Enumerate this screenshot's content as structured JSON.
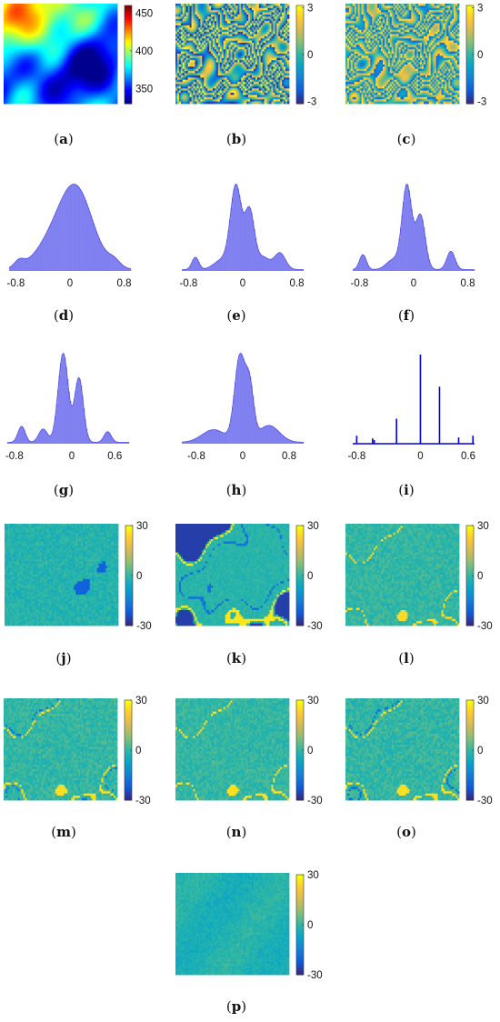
{
  "palettes": {
    "jet": [
      "#00008f",
      "#0000ff",
      "#0080ff",
      "#00ffff",
      "#80ff80",
      "#ffff00",
      "#ff8000",
      "#ff0000",
      "#800000"
    ],
    "parula": [
      "#352a87",
      "#0f5cdd",
      "#1481d6",
      "#06a4ca",
      "#2eb7a4",
      "#87bf77",
      "#d1bb59",
      "#fec832",
      "#f9fb0e"
    ]
  },
  "hist_color": "#6f6fee",
  "stem_color": "#0000dd",
  "panels": [
    {
      "id": "a",
      "label": "a",
      "kind": "map",
      "cmap": "jet",
      "pattern": "elev",
      "colorbar": {
        "min": 330,
        "max": 460,
        "ticks": [
          {
            "v": 450,
            "t": "450"
          },
          {
            "v": 400,
            "t": "400"
          },
          {
            "v": 350,
            "t": "350"
          }
        ]
      }
    },
    {
      "id": "b",
      "label": "b",
      "kind": "map",
      "cmap": "parula",
      "pattern": "wrap1",
      "colorbar": {
        "min": -3.14,
        "max": 3.14,
        "ticks": [
          {
            "v": 3,
            "t": "3"
          },
          {
            "v": 0,
            "t": "0"
          },
          {
            "v": -3,
            "t": "-3"
          }
        ]
      }
    },
    {
      "id": "c",
      "label": "c",
      "kind": "map",
      "cmap": "parula",
      "pattern": "wrap2",
      "colorbar": {
        "min": -3.14,
        "max": 3.14,
        "ticks": [
          {
            "v": 3,
            "t": "3"
          },
          {
            "v": 0,
            "t": "0"
          },
          {
            "v": -3,
            "t": "-3"
          }
        ]
      }
    },
    {
      "id": "d",
      "label": "d",
      "kind": "hist",
      "xlim": [
        -0.9,
        0.9
      ],
      "xticks": [
        {
          "v": -0.8,
          "t": "-0.8"
        },
        {
          "v": 0,
          "t": "0"
        },
        {
          "v": 0.8,
          "t": "0.8"
        }
      ],
      "peaks": [
        [
          -0.05,
          0.32,
          0.95
        ],
        [
          0.12,
          0.22,
          0.75
        ],
        [
          -0.75,
          0.07,
          0.12
        ],
        [
          0.65,
          0.09,
          0.12
        ]
      ]
    },
    {
      "id": "e",
      "label": "e",
      "kind": "hist",
      "xlim": [
        -0.9,
        0.9
      ],
      "xticks": [
        {
          "v": -0.8,
          "t": "-0.8"
        },
        {
          "v": 0,
          "t": "0"
        },
        {
          "v": 0.8,
          "t": "0.8"
        }
      ],
      "peaks": [
        [
          -0.1,
          0.08,
          1.0
        ],
        [
          0.1,
          0.07,
          0.7
        ],
        [
          -0.7,
          0.05,
          0.15
        ],
        [
          0.55,
          0.08,
          0.2
        ],
        [
          -0.3,
          0.12,
          0.12
        ],
        [
          0.3,
          0.1,
          0.15
        ]
      ]
    },
    {
      "id": "f",
      "label": "f",
      "kind": "hist",
      "xlim": [
        -0.9,
        0.9
      ],
      "xticks": [
        {
          "v": -0.8,
          "t": "-0.8"
        },
        {
          "v": 0,
          "t": "0"
        },
        {
          "v": 0.8,
          "t": "0.8"
        }
      ],
      "peaks": [
        [
          -0.1,
          0.07,
          1.0
        ],
        [
          0.1,
          0.07,
          0.65
        ],
        [
          -0.75,
          0.05,
          0.18
        ],
        [
          0.55,
          0.06,
          0.22
        ],
        [
          -0.3,
          0.1,
          0.12
        ]
      ]
    },
    {
      "id": "g",
      "label": "g",
      "kind": "hist",
      "xlim": [
        -0.9,
        0.8
      ],
      "xticks": [
        {
          "v": -0.8,
          "t": "-0.8"
        },
        {
          "v": 0,
          "t": "0"
        },
        {
          "v": 0.6,
          "t": "0.6"
        }
      ],
      "peaks": [
        [
          -0.12,
          0.07,
          1.0
        ],
        [
          0.1,
          0.06,
          0.72
        ],
        [
          -0.7,
          0.05,
          0.18
        ],
        [
          0.5,
          0.05,
          0.12
        ],
        [
          -0.4,
          0.06,
          0.15
        ]
      ]
    },
    {
      "id": "h",
      "label": "h",
      "kind": "hist",
      "xlim": [
        -1.05,
        1.05
      ],
      "xticks": [
        {
          "v": -0.8,
          "t": "-0.8"
        },
        {
          "v": 0,
          "t": "0"
        },
        {
          "v": 0.8,
          "t": "0.8"
        }
      ],
      "peaks": [
        [
          -0.05,
          0.09,
          1.0
        ],
        [
          0.12,
          0.07,
          0.6
        ],
        [
          -0.5,
          0.2,
          0.15
        ],
        [
          0.45,
          0.18,
          0.2
        ]
      ]
    },
    {
      "id": "i",
      "label": "i",
      "kind": "stem",
      "xlim": [
        -0.85,
        0.68
      ],
      "xticks": [
        {
          "v": -0.8,
          "t": "-0.8"
        },
        {
          "v": 0,
          "t": "0"
        },
        {
          "v": 0.6,
          "t": "0.6"
        }
      ],
      "stems": [
        {
          "x": -0.8,
          "h": 0.09
        },
        {
          "x": -0.6,
          "h": 0.06
        },
        {
          "x": -0.58,
          "h": 0.04
        },
        {
          "x": -0.3,
          "h": 0.28
        },
        {
          "x": 0,
          "h": 1.0
        },
        {
          "x": 0.24,
          "h": 0.64
        },
        {
          "x": 0.48,
          "h": 0.07
        },
        {
          "x": 0.66,
          "h": 0.09
        }
      ]
    },
    {
      "id": "j",
      "label": "j",
      "kind": "map",
      "cmap": "parula",
      "pattern": "noise_j",
      "colorbar": {
        "min": -30,
        "max": 30,
        "ticks": [
          {
            "v": 30,
            "t": "30"
          },
          {
            "v": 0,
            "t": "0"
          },
          {
            "v": -30,
            "t": "-30"
          }
        ]
      }
    },
    {
      "id": "k",
      "label": "k",
      "kind": "map",
      "cmap": "parula",
      "pattern": "blobs_k",
      "colorbar": {
        "min": -30,
        "max": 30,
        "ticks": [
          {
            "v": 30,
            "t": "30"
          },
          {
            "v": 0,
            "t": "0"
          },
          {
            "v": -30,
            "t": "-30"
          }
        ]
      }
    },
    {
      "id": "l",
      "label": "l",
      "kind": "map",
      "cmap": "parula",
      "pattern": "lines_l",
      "colorbar": {
        "min": -30,
        "max": 30,
        "ticks": [
          {
            "v": 30,
            "t": "30"
          },
          {
            "v": 0,
            "t": "0"
          },
          {
            "v": -30,
            "t": "-30"
          }
        ]
      }
    },
    {
      "id": "m",
      "label": "m",
      "kind": "map",
      "cmap": "parula",
      "pattern": "lines_m",
      "colorbar": {
        "min": -30,
        "max": 30,
        "ticks": [
          {
            "v": 30,
            "t": "30"
          },
          {
            "v": 0,
            "t": "0"
          },
          {
            "v": -30,
            "t": "-30"
          }
        ]
      }
    },
    {
      "id": "n",
      "label": "n",
      "kind": "map",
      "cmap": "parula",
      "pattern": "lines_n",
      "colorbar": {
        "min": -30,
        "max": 30,
        "ticks": [
          {
            "v": 30,
            "t": "30"
          },
          {
            "v": 0,
            "t": "0"
          },
          {
            "v": -30,
            "t": "-30"
          }
        ]
      }
    },
    {
      "id": "o",
      "label": "o",
      "kind": "map",
      "cmap": "parula",
      "pattern": "lines_o",
      "colorbar": {
        "min": -30,
        "max": 30,
        "ticks": [
          {
            "v": 30,
            "t": "30"
          },
          {
            "v": 0,
            "t": "0"
          },
          {
            "v": -30,
            "t": "-30"
          }
        ]
      }
    },
    {
      "id": "p",
      "label": "p",
      "kind": "map",
      "cmap": "parula",
      "pattern": "noise_p",
      "colorbar": {
        "min": -30,
        "max": 30,
        "ticks": [
          {
            "v": 30,
            "t": "30"
          },
          {
            "v": 0,
            "t": "0"
          },
          {
            "v": -30,
            "t": "-30"
          }
        ]
      }
    }
  ],
  "chart_data": [
    {
      "type": "heatmap",
      "panel": "a",
      "title": "",
      "colorbar_range": [
        330,
        460
      ],
      "colorbar_ticks": [
        450,
        400,
        350
      ]
    },
    {
      "type": "heatmap",
      "panel": "b",
      "colorbar_range": [
        -3.14,
        3.14
      ],
      "colorbar_ticks": [
        3,
        0,
        -3
      ]
    },
    {
      "type": "heatmap",
      "panel": "c",
      "colorbar_range": [
        -3.14,
        3.14
      ],
      "colorbar_ticks": [
        3,
        0,
        -3
      ]
    },
    {
      "type": "area",
      "panel": "d",
      "xticks": [
        -0.8,
        0,
        0.8
      ]
    },
    {
      "type": "area",
      "panel": "e",
      "xticks": [
        -0.8,
        0,
        0.8
      ]
    },
    {
      "type": "area",
      "panel": "f",
      "xticks": [
        -0.8,
        0,
        0.8
      ]
    },
    {
      "type": "area",
      "panel": "g",
      "xticks": [
        -0.8,
        0,
        0.6
      ]
    },
    {
      "type": "area",
      "panel": "h",
      "xticks": [
        -0.8,
        0,
        0.8
      ]
    },
    {
      "type": "bar",
      "panel": "i",
      "xticks": [
        -0.8,
        0,
        0.6
      ],
      "x": [
        -0.8,
        -0.6,
        -0.58,
        -0.3,
        0,
        0.24,
        0.48,
        0.66
      ],
      "values": [
        0.09,
        0.06,
        0.04,
        0.28,
        1.0,
        0.64,
        0.07,
        0.09
      ]
    },
    {
      "type": "heatmap",
      "panel": "j",
      "colorbar_range": [
        -30,
        30
      ],
      "colorbar_ticks": [
        30,
        0,
        -30
      ]
    },
    {
      "type": "heatmap",
      "panel": "k",
      "colorbar_range": [
        -30,
        30
      ],
      "colorbar_ticks": [
        30,
        0,
        -30
      ]
    },
    {
      "type": "heatmap",
      "panel": "l",
      "colorbar_range": [
        -30,
        30
      ],
      "colorbar_ticks": [
        30,
        0,
        -30
      ]
    },
    {
      "type": "heatmap",
      "panel": "m",
      "colorbar_range": [
        -30,
        30
      ],
      "colorbar_ticks": [
        30,
        0,
        -30
      ]
    },
    {
      "type": "heatmap",
      "panel": "n",
      "colorbar_range": [
        -30,
        30
      ],
      "colorbar_ticks": [
        30,
        0,
        -30
      ]
    },
    {
      "type": "heatmap",
      "panel": "o",
      "colorbar_range": [
        -30,
        30
      ],
      "colorbar_ticks": [
        30,
        0,
        -30
      ]
    },
    {
      "type": "heatmap",
      "panel": "p",
      "colorbar_range": [
        -30,
        30
      ],
      "colorbar_ticks": [
        30,
        0,
        -30
      ]
    }
  ]
}
